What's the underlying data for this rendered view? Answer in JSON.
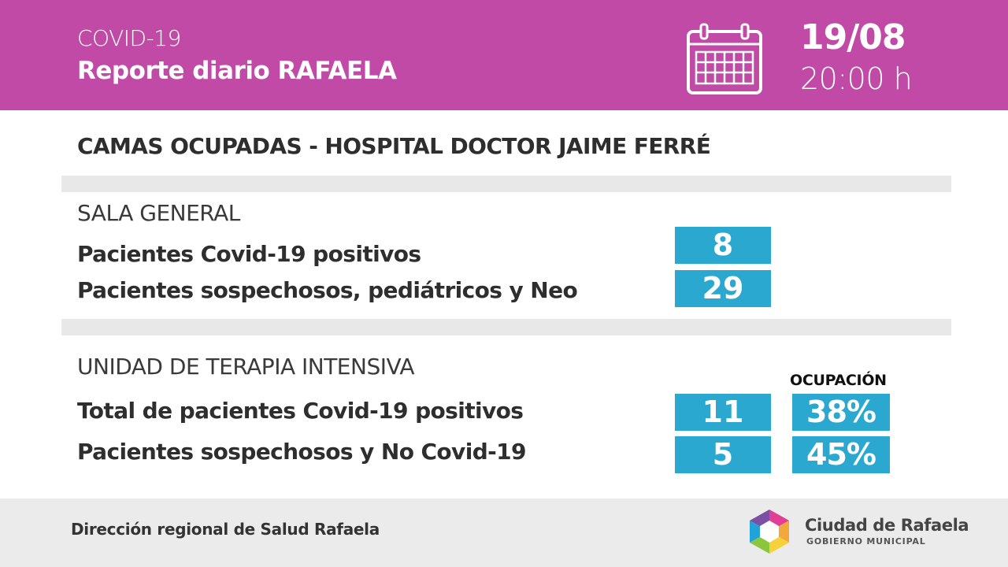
{
  "header": {
    "subtitle": "COVID-19",
    "title": "Reporte diario RAFAELA",
    "date": "19/08",
    "time": "20:00 h",
    "calendar_icon": "calendar-icon"
  },
  "section_title": "CAMAS OCUPADAS - HOSPITAL DOCTOR JAIME FERRÉ",
  "sala_general": {
    "heading": "SALA GENERAL",
    "rows": [
      {
        "label": "Pacientes Covid-19 positivos",
        "value": "8"
      },
      {
        "label": "Pacientes sospechosos, pediátricos y Neo",
        "value": "29"
      }
    ]
  },
  "uti": {
    "heading": "UNIDAD DE TERAPIA INTENSIVA",
    "occupancy_heading": "OCUPACIÓN",
    "rows": [
      {
        "label": "Total de pacientes Covid-19 positivos",
        "value": "11",
        "occupancy": "38%"
      },
      {
        "label": "Pacientes sospechosos y No Covid-19",
        "value": "5",
        "occupancy": "45%"
      }
    ]
  },
  "footer": {
    "text": "Dirección regional de Salud Rafaela",
    "logo_name": "Ciudad de Rafaela",
    "logo_sub": "GOBIERNO MUNICIPAL"
  },
  "colors": {
    "header_bg": "#c14aa6",
    "value_box": "#2aa8d0",
    "divider": "#e8e8e8",
    "footer_bg": "#ebebeb"
  }
}
